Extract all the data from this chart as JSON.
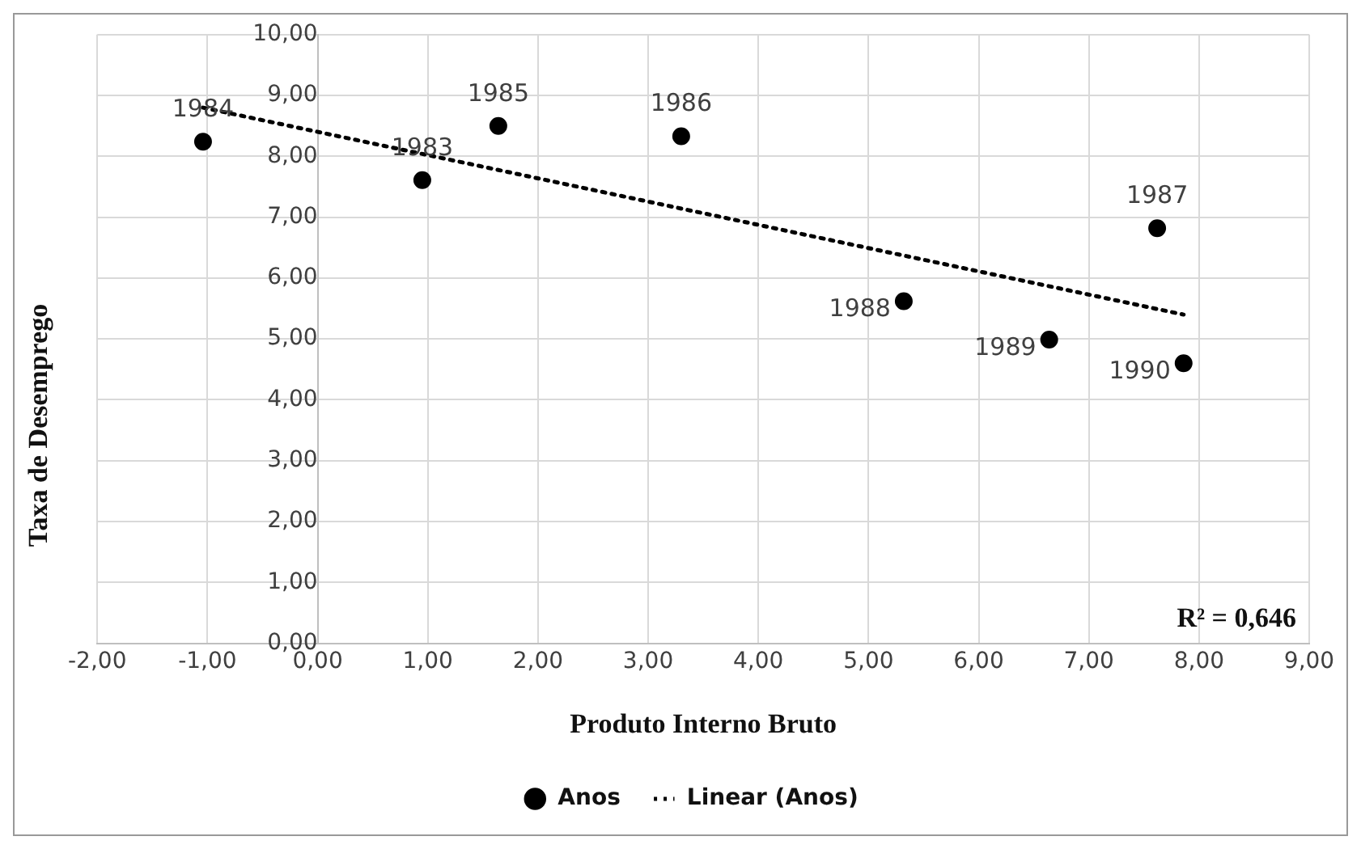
{
  "chart_data": {
    "type": "scatter",
    "xlabel": "Produto Interno Bruto",
    "ylabel": "Taxa de Desemprego",
    "series": [
      {
        "name": "Anos",
        "type": "scatter",
        "color": "#000000",
        "x": [
          0.95,
          -1.04,
          1.64,
          3.3,
          7.62,
          5.32,
          6.64,
          7.86
        ],
        "values": [
          7.61,
          8.24,
          8.5,
          8.33,
          6.82,
          5.62,
          4.99,
          4.6
        ]
      },
      {
        "name": "Linear (Anos)",
        "type": "line",
        "color": "#000000",
        "line_style": "dotted",
        "marker": "none",
        "x": [
          -1.04,
          7.86
        ],
        "values": [
          8.8,
          5.4
        ]
      }
    ],
    "marker": "circle",
    "xlim": [
      -2,
      9
    ],
    "ylim": [
      0,
      10
    ],
    "xticks": [
      {
        "value": -2,
        "label": "-2,00"
      },
      {
        "value": -1,
        "label": "-1,00"
      },
      {
        "value": 0,
        "label": "0,00"
      },
      {
        "value": 1,
        "label": "1,00"
      },
      {
        "value": 2,
        "label": "2,00"
      },
      {
        "value": 3,
        "label": "3,00"
      },
      {
        "value": 4,
        "label": "4,00"
      },
      {
        "value": 5,
        "label": "5,00"
      },
      {
        "value": 6,
        "label": "6,00"
      },
      {
        "value": 7,
        "label": "7,00"
      },
      {
        "value": 8,
        "label": "8,00"
      },
      {
        "value": 9,
        "label": "9,00"
      }
    ],
    "yticks": [
      {
        "value": 0,
        "label": "0,00"
      },
      {
        "value": 1,
        "label": "1,00"
      },
      {
        "value": 2,
        "label": "2,00"
      },
      {
        "value": 3,
        "label": "3,00"
      },
      {
        "value": 4,
        "label": "4,00"
      },
      {
        "value": 5,
        "label": "5,00"
      },
      {
        "value": 6,
        "label": "6,00"
      },
      {
        "value": 7,
        "label": "7,00"
      },
      {
        "value": 8,
        "label": "8,00"
      },
      {
        "value": 9,
        "label": "9,00"
      },
      {
        "value": 10,
        "label": "10,00"
      }
    ],
    "grid": true,
    "legend": "bottom",
    "annotations": [
      {
        "text": "1983",
        "x": 0.95,
        "y": 7.61
      },
      {
        "text": "1984",
        "x": -1.04,
        "y": 8.24
      },
      {
        "text": "1985",
        "x": 1.64,
        "y": 8.5
      },
      {
        "text": "1986",
        "x": 3.3,
        "y": 8.33
      },
      {
        "text": "1987",
        "x": 7.62,
        "y": 6.82
      },
      {
        "text": "1988",
        "x": 5.32,
        "y": 5.62
      },
      {
        "text": "1989",
        "x": 6.64,
        "y": 4.99
      },
      {
        "text": "1990",
        "x": 7.86,
        "y": 4.6
      },
      "R² = 0,646"
    ]
  }
}
